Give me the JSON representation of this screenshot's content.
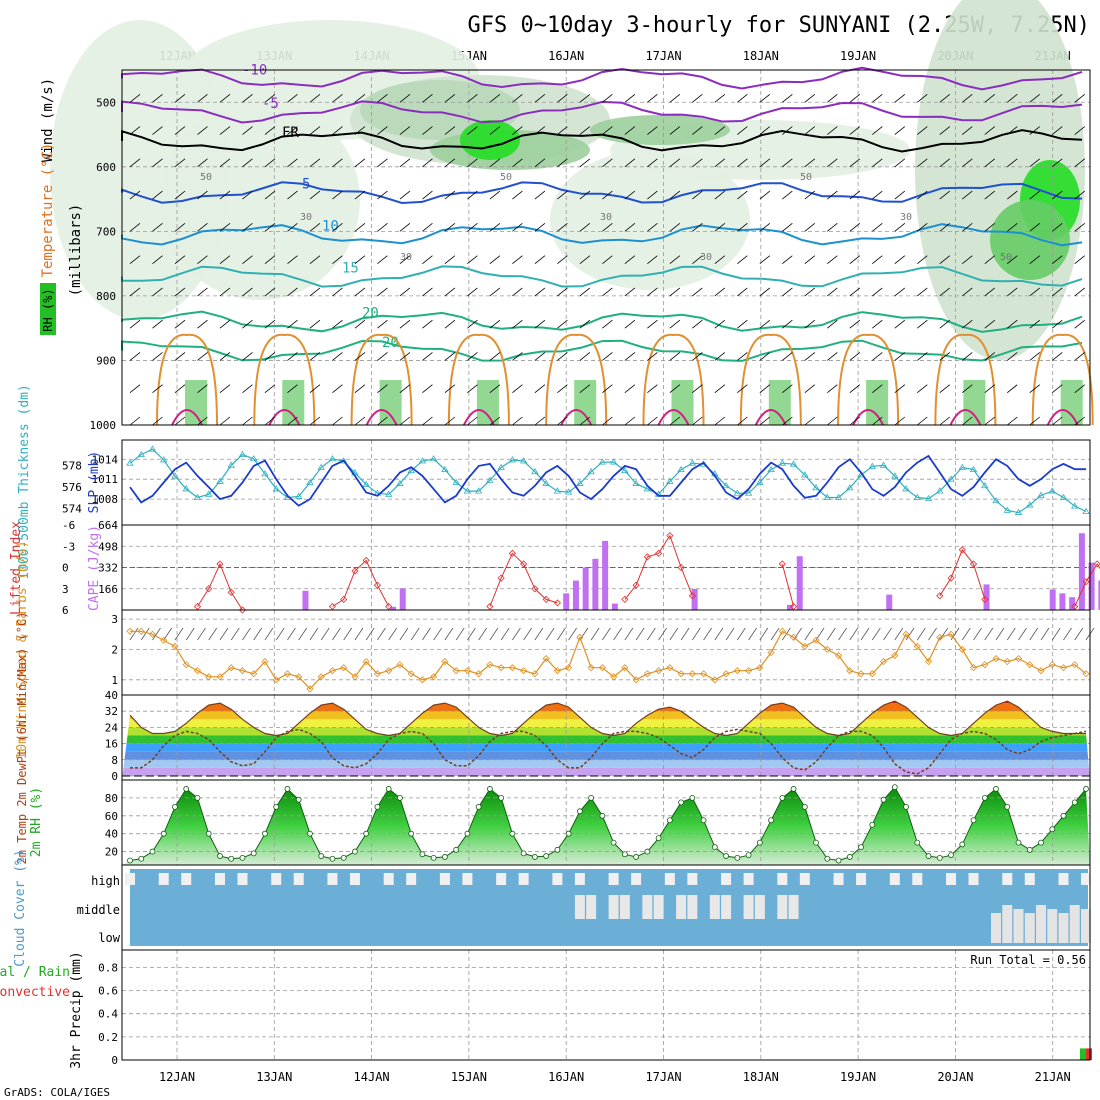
{
  "header": {
    "title": "GFS 0~10day 3-hourly for SUNYANI (2.25W, 7.25N)",
    "footer": "GrADS: COLA/IGES"
  },
  "days": [
    "12JAN",
    "13JAN",
    "14JAN",
    "15JAN",
    "16JAN",
    "17JAN",
    "18JAN",
    "19JAN",
    "20JAN",
    "21JAN"
  ],
  "colors": {
    "wind_temp": "#7b2cbf",
    "temperature_label": "#e07020",
    "rh_green": "#22c022",
    "thickness": "#30b0c0",
    "slp": "#1a3ccc",
    "lifted_index": "#e03030",
    "cape": "#c070f0",
    "wind10": "#e09020",
    "cloud_blue": "#6baed6",
    "precip_total": "#22c022",
    "precip_conv": "#e03030"
  },
  "chart_data": [
    {
      "type": "contour",
      "panel": "upper_air",
      "ylabel_parts": [
        "RH (%)",
        "Temperature (°C)",
        "Wind (m/s)"
      ],
      "yunits": "(millibars)",
      "yticks": [
        500,
        600,
        700,
        800,
        900,
        1000
      ],
      "ylim": [
        450,
        1000
      ],
      "contour_labels": [
        {
          "text": "-10",
          "p": 463
        },
        {
          "text": "-5",
          "p": 515
        },
        {
          "text": "FR",
          "p": 560
        },
        {
          "text": "5",
          "p": 640
        },
        {
          "text": "10",
          "p": 705
        },
        {
          "text": "15",
          "p": 770
        },
        {
          "text": "20",
          "p": 840
        },
        {
          "text": "20",
          "p": 885
        }
      ],
      "rh_labels": [
        "50",
        "30",
        "30",
        "50",
        "30",
        "30",
        "50",
        "30",
        "50"
      ]
    },
    {
      "type": "line",
      "panel": "thickness_slp",
      "ylabel_left": "1000-500mb Thickness (dm)",
      "ylabel_right": "SLP (mb)",
      "yticks_left": [
        574,
        576,
        578
      ],
      "yticks_right": [
        1008,
        1011,
        1014
      ],
      "series": [
        {
          "name": "1000-500mb Thickness",
          "values": [
            578.2,
            579.0,
            579.5,
            578.5,
            577,
            575.8,
            575.0,
            575.3,
            576.5,
            578.0,
            579.0,
            578.6,
            577.2,
            575.8,
            575.0,
            575.1,
            576.4,
            577.8,
            578.6,
            578.4,
            577.3,
            576.2,
            575.4,
            575.3,
            576.3,
            577.5,
            578.4,
            578.6,
            577.6,
            576.4,
            575.6,
            575.6,
            576.6,
            577.8,
            578.5,
            578.4,
            577.4,
            576.3,
            575.6,
            575.5,
            576.3,
            577.4,
            578.3,
            578.3,
            577.5,
            576.3,
            575.8,
            575.3,
            576.5,
            577.6,
            578.2,
            578.1,
            577.2,
            576.1,
            575.4,
            575.4,
            576.4,
            577.6,
            578.2,
            578.1,
            577.1,
            575.9,
            575.0,
            575.0,
            575.9,
            577.1,
            577.9,
            578.0,
            577.0,
            575.8,
            575.0,
            574.9,
            575.6,
            576.7,
            577.8,
            577.6,
            576.1,
            574.7,
            573.8,
            573.6,
            574.3,
            575.2,
            575.6,
            575.0,
            574.2,
            573.7
          ]
        },
        {
          "name": "SLP",
          "values": [
            1009.8,
            1007.5,
            1008.5,
            1010.5,
            1012.5,
            1013.5,
            1011.5,
            1009.8,
            1008.0,
            1008.5,
            1010.5,
            1013.0,
            1013.8,
            1011.0,
            1008.5,
            1007.0,
            1008.0,
            1010.5,
            1013.0,
            1013.8,
            1011.5,
            1009.0,
            1008.5,
            1010.0,
            1012.0,
            1012.8,
            1011.5,
            1009.5,
            1007.5,
            1008.5,
            1011.0,
            1013.0,
            1013.3,
            1011.0,
            1009.0,
            1008.5,
            1010.0,
            1012.0,
            1013.0,
            1011.5,
            1009.0,
            1008.0,
            1009.5,
            1011.5,
            1013.0,
            1012.5,
            1010.0,
            1008.5,
            1008.5,
            1010.5,
            1012.5,
            1013.5,
            1011.5,
            1009.0,
            1008.0,
            1009.5,
            1011.8,
            1013.5,
            1012.5,
            1010.0,
            1008.2,
            1008.5,
            1010.5,
            1012.8,
            1014.0,
            1012.0,
            1009.5,
            1008.5,
            1009.8,
            1012.0,
            1013.5,
            1014.5,
            1012.0,
            1009.5,
            1008.5,
            1009.8,
            1012.0,
            1014.0,
            1013.0,
            1011.0,
            1010.0,
            1011.0,
            1012.5,
            1013.3,
            1012.5,
            1012.5
          ]
        }
      ]
    },
    {
      "type": "bar+line",
      "panel": "li_cape",
      "ylabel_left": "Lifted Index",
      "ylabel_right": "CAPE (J/kg)",
      "yticks_left": [
        -6,
        -3,
        0,
        3,
        6
      ],
      "yticks_right": [
        166,
        332,
        498,
        664
      ],
      "series": [
        {
          "name": "Lifted Index",
          "values": [
            null,
            null,
            null,
            null,
            null,
            null,
            5.5,
            3.0,
            -0.5,
            3.5,
            6.5,
            null,
            null,
            null,
            null,
            null,
            null,
            null,
            5.5,
            4.5,
            0.5,
            -1.0,
            2.5,
            5.5,
            null,
            null,
            null,
            null,
            null,
            null,
            null,
            null,
            5.5,
            1.5,
            -2.0,
            -0.5,
            3.0,
            4.5,
            5.0,
            null,
            null,
            null,
            null,
            null,
            4.5,
            2.5,
            -1.5,
            -2.0,
            -4.5,
            0.0,
            4.0,
            null,
            null,
            null,
            null,
            null,
            null,
            null,
            -0.5,
            5.5,
            null,
            null,
            null,
            null,
            null,
            null,
            null,
            null,
            null,
            null,
            null,
            null,
            4.0,
            1.5,
            -2.5,
            -0.5,
            4.5,
            null,
            null,
            null,
            null,
            null,
            null,
            null,
            5.5,
            2.0,
            -0.5,
            2.0,
            5.0,
            null
          ]
        },
        {
          "name": "CAPE",
          "values": [
            0,
            0,
            0,
            0,
            0,
            0,
            0,
            0,
            0,
            0,
            0,
            0,
            0,
            0,
            0,
            0,
            0,
            0,
            0,
            0,
            0,
            0,
            0,
            0,
            0,
            0,
            0,
            0,
            0,
            0,
            0,
            0,
            0,
            0,
            0,
            0,
            0,
            0,
            0,
            0,
            0,
            0,
            0,
            0,
            0,
            0,
            0,
            0,
            0,
            0,
            0,
            0,
            0,
            0,
            0,
            0,
            0,
            0,
            0,
            0,
            0,
            0,
            0,
            0,
            0,
            0,
            0,
            0,
            0,
            0,
            0,
            0,
            0,
            0,
            0,
            0,
            0,
            0,
            0,
            0,
            0,
            0,
            0,
            0,
            0,
            0
          ]
        }
      ],
      "cape_bars": [
        {
          "x": 3.32,
          "v": 150
        },
        {
          "x": 4.32,
          "v": 170
        },
        {
          "x": 4.22,
          "v": 25
        },
        {
          "x": 6.1,
          "v": 230
        },
        {
          "x": 6.2,
          "v": 330
        },
        {
          "x": 6.3,
          "v": 400
        },
        {
          "x": 6.4,
          "v": 540
        },
        {
          "x": 6.5,
          "v": 50
        },
        {
          "x": 6.0,
          "v": 130
        },
        {
          "x": 7.32,
          "v": 165
        },
        {
          "x": 8.3,
          "v": 40
        },
        {
          "x": 8.4,
          "v": 420
        },
        {
          "x": 9.32,
          "v": 120
        },
        {
          "x": 10.32,
          "v": 200
        },
        {
          "x": 11.0,
          "v": 160
        },
        {
          "x": 11.1,
          "v": 130
        },
        {
          "x": 11.2,
          "v": 100
        },
        {
          "x": 11.3,
          "v": 600
        },
        {
          "x": 11.4,
          "v": 370
        },
        {
          "x": 11.5,
          "v": 230
        },
        {
          "x": 11.6,
          "v": 80
        },
        {
          "x": 11.7,
          "v": 50
        },
        {
          "x": 11.8,
          "v": 20
        },
        {
          "x": 12.0,
          "v": 75
        },
        {
          "x": 12.1,
          "v": 60
        }
      ]
    },
    {
      "type": "line",
      "panel": "wind10",
      "ylabel": "10m Wind Speed & Barbs (m/s)",
      "yticks": [
        1,
        2,
        3
      ],
      "series": [
        {
          "name": "10m Wind",
          "values": [
            2.6,
            2.6,
            2.5,
            2.3,
            2.1,
            1.5,
            1.3,
            1.1,
            1.1,
            1.4,
            1.3,
            1.2,
            1.6,
            1.0,
            1.2,
            1.1,
            0.7,
            1.1,
            1.3,
            1.4,
            1.1,
            1.6,
            1.2,
            1.3,
            1.5,
            1.2,
            1.0,
            1.1,
            1.6,
            1.3,
            1.3,
            1.2,
            1.5,
            1.4,
            1.4,
            1.3,
            1.2,
            1.7,
            1.3,
            1.4,
            2.4,
            1.4,
            1.4,
            1.1,
            1.4,
            1.0,
            1.2,
            1.3,
            1.4,
            1.2,
            1.2,
            1.2,
            1.0,
            1.2,
            1.3,
            1.3,
            1.4,
            1.9,
            2.6,
            2.4,
            2.1,
            2.3,
            2.0,
            1.8,
            1.3,
            1.2,
            1.2,
            1.6,
            1.8,
            2.5,
            2.1,
            1.6,
            2.4,
            2.5,
            2.0,
            1.4,
            1.5,
            1.7,
            1.6,
            1.7,
            1.5,
            1.3,
            1.5,
            1.4,
            1.5,
            1.2
          ]
        }
      ]
    },
    {
      "type": "area",
      "panel": "temp",
      "ylabel": "2m Temp 2m DewPt (6hr Min/Max) (°C)",
      "yticks": [
        0,
        8,
        16,
        24,
        32,
        40
      ],
      "series": [
        {
          "name": "2m Temp",
          "values": [
            30,
            24,
            21,
            21,
            22,
            26,
            31,
            35,
            36,
            33,
            28,
            24,
            21,
            20,
            21,
            26,
            31,
            35,
            36,
            33,
            28,
            23,
            21,
            20,
            21,
            26,
            31,
            35,
            36,
            34,
            29,
            24,
            21,
            20,
            21,
            26,
            31,
            35,
            36,
            34,
            29,
            24,
            21,
            20,
            21,
            26,
            30,
            33,
            34,
            32,
            28,
            24,
            21,
            20,
            21,
            26,
            31,
            35,
            36,
            34,
            29,
            24,
            21,
            20,
            21,
            26,
            31,
            35,
            37,
            34,
            29,
            24,
            21,
            20,
            21,
            26,
            31,
            35,
            37,
            34,
            29,
            24,
            22,
            21,
            21,
            21
          ]
        },
        {
          "name": "2m DewPt",
          "values": [
            4,
            4,
            8,
            15,
            20,
            22,
            21,
            18,
            12,
            7,
            5,
            6,
            12,
            19,
            22,
            23,
            21,
            17,
            9,
            5,
            4,
            6,
            11,
            18,
            21,
            22,
            21,
            16,
            8,
            5,
            5,
            10,
            17,
            21,
            22,
            22,
            20,
            15,
            8,
            4,
            4,
            9,
            16,
            21,
            22,
            22,
            21,
            19,
            15,
            11,
            9,
            13,
            19,
            22,
            23,
            22,
            21,
            16,
            9,
            4,
            3,
            7,
            14,
            20,
            22,
            22,
            20,
            14,
            6,
            2,
            1,
            4,
            11,
            18,
            21,
            22,
            21,
            18,
            13,
            11,
            13,
            17,
            19,
            20,
            21,
            22
          ]
        }
      ]
    },
    {
      "type": "area",
      "panel": "rh",
      "ylabel": "2m RH (%)",
      "yticks": [
        20,
        40,
        60,
        80
      ],
      "series": [
        {
          "name": "2m RH",
          "values": [
            10,
            12,
            20,
            40,
            70,
            90,
            80,
            40,
            15,
            12,
            13,
            18,
            40,
            70,
            90,
            78,
            40,
            15,
            12,
            13,
            20,
            40,
            70,
            90,
            80,
            40,
            17,
            13,
            14,
            22,
            40,
            70,
            90,
            80,
            40,
            18,
            14,
            15,
            22,
            40,
            65,
            80,
            60,
            30,
            17,
            14,
            20,
            35,
            55,
            75,
            80,
            55,
            25,
            15,
            13,
            16,
            30,
            55,
            80,
            90,
            70,
            30,
            12,
            10,
            14,
            25,
            50,
            78,
            92,
            70,
            30,
            15,
            13,
            16,
            28,
            55,
            80,
            90,
            70,
            30,
            22,
            30,
            45,
            60,
            75,
            90
          ]
        }
      ]
    },
    {
      "type": "heatmap",
      "panel": "cloud",
      "ylabel": "Cloud Cover (%)",
      "rows": [
        "high",
        "middle",
        "low"
      ]
    },
    {
      "type": "bar",
      "panel": "precip",
      "ylabel": "3hr Precip (mm)",
      "left_labels": [
        "Total / Rain",
        "Convective"
      ],
      "run_total_label": "Run Total = 0.56",
      "yticks": [
        0,
        0.2,
        0.4,
        0.6,
        0.8
      ],
      "ylim": [
        0,
        0.95
      ],
      "series": [
        {
          "name": "Total / Rain",
          "values": [
            0.1
          ]
        },
        {
          "name": "Convective",
          "values": [
            0.1
          ]
        }
      ]
    }
  ]
}
